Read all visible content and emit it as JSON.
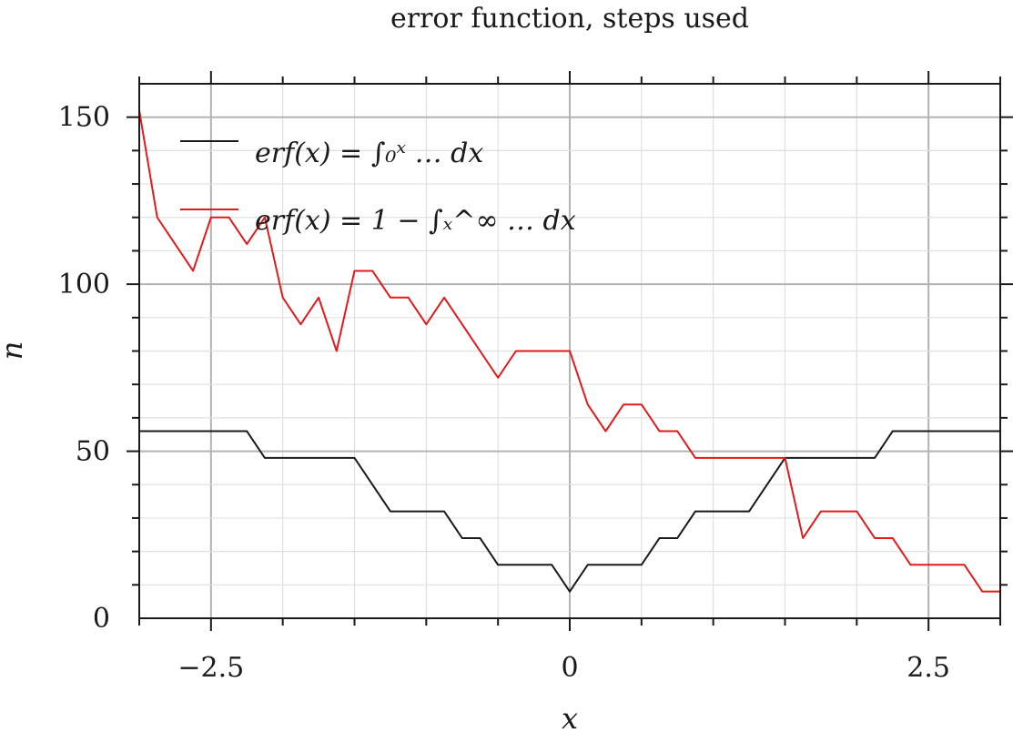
{
  "chart_data": {
    "type": "line",
    "title": "error function, steps used",
    "xlabel": "x",
    "ylabel": "n",
    "xlim": [
      -3.0,
      3.0
    ],
    "ylim": [
      0,
      160
    ],
    "xticks": [
      -2.5,
      0,
      2.5
    ],
    "xtick_labels": [
      "−2.5",
      "0",
      "2.5"
    ],
    "yticks": [
      0,
      50,
      100,
      150
    ],
    "ytick_labels": [
      "0",
      "50",
      "100",
      "150"
    ],
    "grid": true,
    "legend_position": "top-left",
    "series": [
      {
        "name": "erf(x) = ∫₀ˣ … dx",
        "color": "#1a1a1a",
        "x": [
          -3.0,
          -2.25,
          -2.125,
          -1.5,
          -1.25,
          -0.875,
          -0.75,
          -0.625,
          -0.5,
          -0.125,
          0,
          0.125,
          0.5,
          0.625,
          0.75,
          0.875,
          1.25,
          1.5,
          2.125,
          2.25,
          3.0
        ],
        "y": [
          56,
          56,
          48,
          48,
          32,
          32,
          24,
          24,
          16,
          16,
          8,
          16,
          16,
          24,
          24,
          32,
          32,
          48,
          48,
          56,
          56
        ]
      },
      {
        "name": "erf(x) = 1 − ∫ₓ^∞ … dx",
        "color": "#e31a1c",
        "x": [
          -3.0,
          -2.875,
          -2.625,
          -2.5,
          -2.375,
          -2.25,
          -2.125,
          -2.0,
          -1.875,
          -1.75,
          -1.625,
          -1.5,
          -1.375,
          -1.25,
          -1.125,
          -1.0,
          -0.875,
          -0.75,
          -0.625,
          -0.5,
          -0.375,
          -0.25,
          -0.125,
          0,
          0.125,
          0.25,
          0.375,
          0.5,
          0.625,
          0.75,
          0.875,
          1.0,
          1.125,
          1.25,
          1.375,
          1.5,
          1.625,
          1.75,
          1.875,
          2.0,
          2.125,
          2.25,
          2.375,
          2.5,
          2.625,
          2.75,
          2.875,
          3.0
        ],
        "y": [
          152,
          120,
          104,
          120,
          120,
          112,
          120,
          96,
          88,
          96,
          80,
          104,
          104,
          96,
          96,
          88,
          96,
          88,
          80,
          72,
          80,
          80,
          80,
          80,
          64,
          56,
          64,
          64,
          56,
          56,
          48,
          48,
          48,
          48,
          48,
          48,
          24,
          32,
          32,
          32,
          24,
          24,
          16,
          16,
          16,
          16,
          8,
          8
        ]
      }
    ]
  }
}
